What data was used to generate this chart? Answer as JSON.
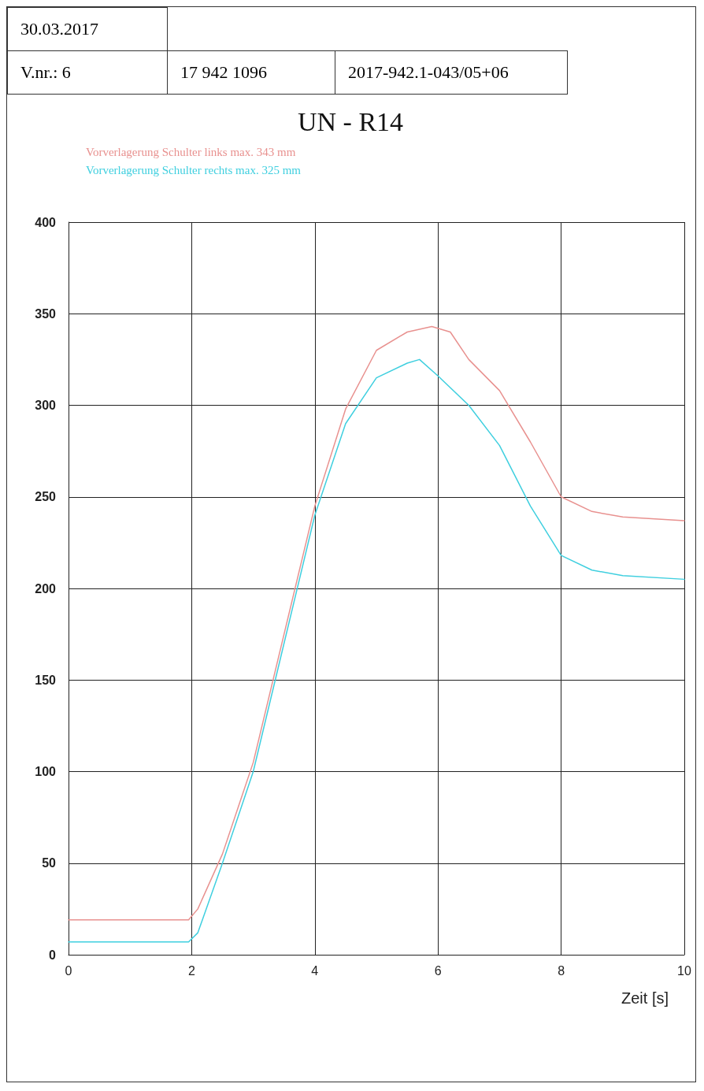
{
  "chart_data": {
    "type": "line",
    "title": "UN - R14",
    "xlabel": "Zeit [s]",
    "annotations": [
      "30.03.2017",
      "V.nr.: 6",
      "17 942 1096",
      "2017-942.1-043/05+06"
    ],
    "legend": "top left",
    "grid": true,
    "marker": "none",
    "line_style": "solid",
    "xlim": [
      0,
      10
    ],
    "xticks": [
      0,
      2,
      4,
      6,
      8,
      10
    ],
    "ylim": [
      0,
      400
    ],
    "yticks": [
      0,
      50,
      100,
      150,
      200,
      250,
      300,
      350,
      400
    ],
    "series": [
      {
        "name": "Vorverlagerung Schulter links max. 343 mm",
        "color": "#e8918f",
        "x": [
          0,
          1.95,
          2.1,
          2.5,
          3,
          3.5,
          4,
          4.5,
          5,
          5.5,
          5.9,
          6.2,
          6.5,
          7,
          7.5,
          8,
          8.5,
          9,
          10
        ],
        "values": [
          19,
          19,
          25,
          55,
          105,
          175,
          245,
          298,
          330,
          340,
          343,
          340,
          325,
          308,
          280,
          250,
          242,
          239,
          237
        ]
      },
      {
        "name": "Vorverlagerung Schulter rechts max. 325 mm",
        "color": "#3fcfdf",
        "x": [
          0,
          1.95,
          2.1,
          2.5,
          3,
          3.5,
          4,
          4.5,
          5,
          5.5,
          5.7,
          6,
          6.5,
          7,
          7.5,
          8,
          8.5,
          9,
          10
        ],
        "values": [
          7,
          7,
          12,
          50,
          100,
          170,
          240,
          290,
          315,
          323,
          325,
          316,
          300,
          278,
          245,
          218,
          210,
          207,
          205
        ]
      }
    ]
  }
}
